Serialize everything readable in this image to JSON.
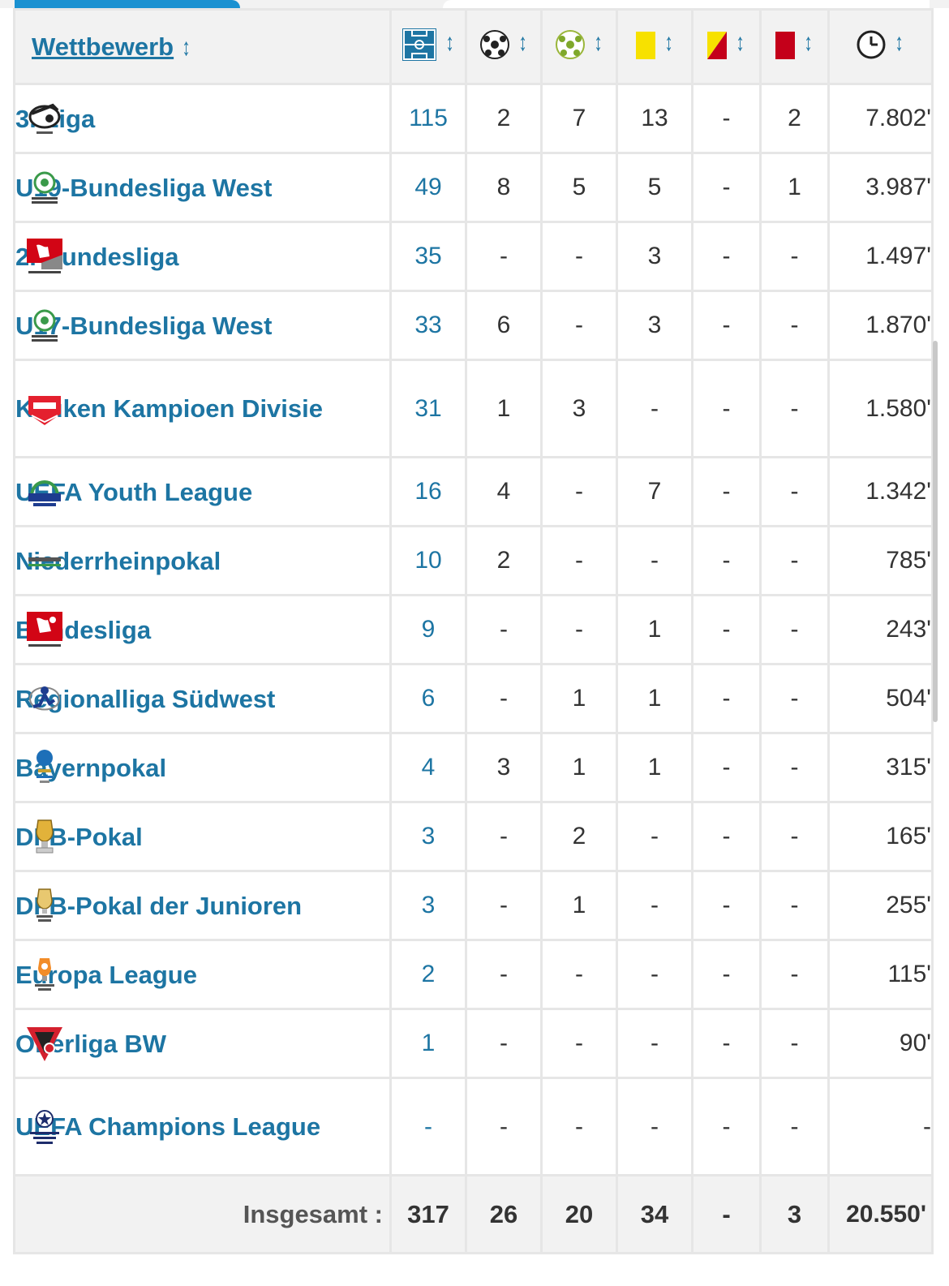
{
  "table": {
    "header": {
      "competition_label": "Wettbewerb",
      "sort_glyph": "↕",
      "columns": [
        {
          "icon": "pitch-icon"
        },
        {
          "icon": "goal-ball-icon"
        },
        {
          "icon": "assist-ball-icon"
        },
        {
          "icon": "yellow-card-icon"
        },
        {
          "icon": "yellow-red-card-icon"
        },
        {
          "icon": "red-card-icon"
        },
        {
          "icon": "clock-icon"
        }
      ]
    },
    "rows": [
      {
        "name": "3. Liga",
        "logo": "3-liga-logo",
        "apps": "115",
        "goals": "2",
        "assists": "7",
        "yellow": "13",
        "yellow_red": "-",
        "red": "2",
        "minutes": "7.802'"
      },
      {
        "name": "U19-Bundesliga West",
        "logo": "u19-bundesliga-logo",
        "apps": "49",
        "goals": "8",
        "assists": "5",
        "yellow": "5",
        "yellow_red": "-",
        "red": "1",
        "minutes": "3.987'"
      },
      {
        "name": "2. Bundesliga",
        "logo": "2-bundesliga-logo",
        "apps": "35",
        "goals": "-",
        "assists": "-",
        "yellow": "3",
        "yellow_red": "-",
        "red": "-",
        "minutes": "1.497'"
      },
      {
        "name": "U17-Bundesliga West",
        "logo": "u17-bundesliga-logo",
        "apps": "33",
        "goals": "6",
        "assists": "-",
        "yellow": "3",
        "yellow_red": "-",
        "red": "-",
        "minutes": "1.870'"
      },
      {
        "name": "Keuken Kampioen Divisie",
        "logo": "keuken-kampioen-logo",
        "apps": "31",
        "goals": "1",
        "assists": "3",
        "yellow": "-",
        "yellow_red": "-",
        "red": "-",
        "minutes": "1.580'"
      },
      {
        "name": "UEFA Youth League",
        "logo": "uefa-youth-league-logo",
        "apps": "16",
        "goals": "4",
        "assists": "-",
        "yellow": "7",
        "yellow_red": "-",
        "red": "-",
        "minutes": "1.342'"
      },
      {
        "name": "Niederrheinpokal",
        "logo": "niederrheinpokal-logo",
        "apps": "10",
        "goals": "2",
        "assists": "-",
        "yellow": "-",
        "yellow_red": "-",
        "red": "-",
        "minutes": "785'"
      },
      {
        "name": "Bundesliga",
        "logo": "bundesliga-logo",
        "apps": "9",
        "goals": "-",
        "assists": "-",
        "yellow": "1",
        "yellow_red": "-",
        "red": "-",
        "minutes": "243'"
      },
      {
        "name": "Regionalliga Südwest",
        "logo": "regionalliga-logo",
        "apps": "6",
        "goals": "-",
        "assists": "1",
        "yellow": "1",
        "yellow_red": "-",
        "red": "-",
        "minutes": "504'"
      },
      {
        "name": "Bayernpokal",
        "logo": "bayernpokal-logo",
        "apps": "4",
        "goals": "3",
        "assists": "1",
        "yellow": "1",
        "yellow_red": "-",
        "red": "-",
        "minutes": "315'"
      },
      {
        "name": "DFB-Pokal",
        "logo": "dfb-pokal-logo",
        "apps": "3",
        "goals": "-",
        "assists": "2",
        "yellow": "-",
        "yellow_red": "-",
        "red": "-",
        "minutes": "165'"
      },
      {
        "name": "DFB-Pokal der Junioren",
        "logo": "dfb-pokal-junioren-logo",
        "apps": "3",
        "goals": "-",
        "assists": "1",
        "yellow": "-",
        "yellow_red": "-",
        "red": "-",
        "minutes": "255'"
      },
      {
        "name": "Europa League",
        "logo": "europa-league-logo",
        "apps": "2",
        "goals": "-",
        "assists": "-",
        "yellow": "-",
        "yellow_red": "-",
        "red": "-",
        "minutes": "115'"
      },
      {
        "name": "Oberliga BW",
        "logo": "oberliga-bw-logo",
        "apps": "1",
        "goals": "-",
        "assists": "-",
        "yellow": "-",
        "yellow_red": "-",
        "red": "-",
        "minutes": "90'"
      },
      {
        "name": "UEFA Champions League",
        "logo": "champions-league-logo",
        "apps": "-",
        "goals": "-",
        "assists": "-",
        "yellow": "-",
        "yellow_red": "-",
        "red": "-",
        "minutes": "-"
      }
    ],
    "totals": {
      "label": "Insgesamt :",
      "apps": "317",
      "goals": "26",
      "assists": "20",
      "yellow": "34",
      "yellow_red": "-",
      "red": "3",
      "minutes": "20.550'"
    }
  },
  "colors": {
    "link": "#1d75a3",
    "accent": "#1a91d1",
    "header_bg": "#f2f2f2",
    "border": "#e6e6e6",
    "yellow_card": "#f7e100",
    "red_card": "#c4001a"
  }
}
